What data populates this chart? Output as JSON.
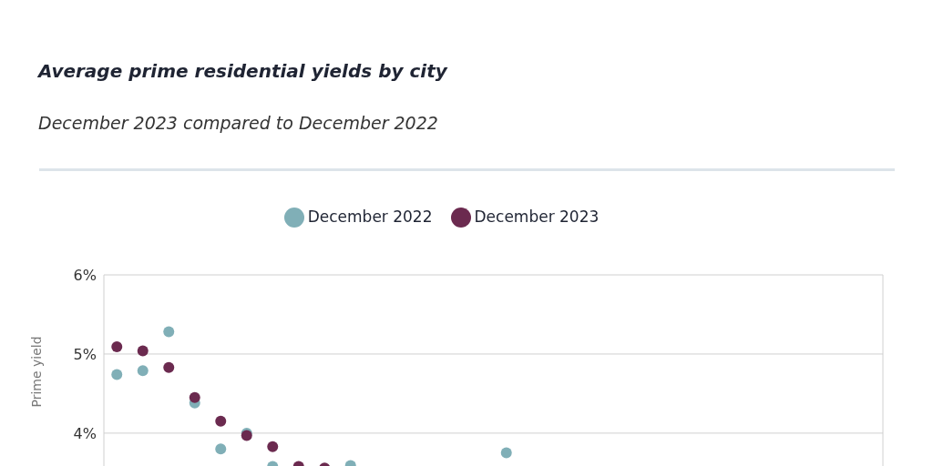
{
  "chart_data": {
    "type": "scatter",
    "title": "Average prime residential yields by city",
    "subtitle": "December 2023 compared to December 2022",
    "ylabel": "Prime yield",
    "categories": [
      null,
      null,
      null,
      null,
      null,
      null,
      null,
      null,
      null,
      null,
      null,
      null,
      null,
      null,
      null,
      null,
      null,
      null,
      null,
      null,
      null,
      null,
      null,
      null,
      null,
      null,
      null,
      null,
      null,
      null
    ],
    "series": [
      {
        "name": "December 2022",
        "color": "#80afb7",
        "values": [
          4.74,
          4.79,
          5.28,
          4.38,
          3.8,
          4.0,
          3.58,
          null,
          null,
          3.59,
          null,
          null,
          null,
          null,
          null,
          3.75,
          null,
          null,
          null,
          null,
          null,
          null,
          null,
          null,
          null,
          null,
          null,
          null,
          null,
          null
        ]
      },
      {
        "name": "December 2023",
        "color": "#6b2a4f",
        "values": [
          5.09,
          5.04,
          4.83,
          4.45,
          4.15,
          3.97,
          3.83,
          3.58,
          3.56,
          null,
          null,
          null,
          null,
          null,
          null,
          null,
          null,
          null,
          null,
          null,
          null,
          null,
          null,
          null,
          null,
          null,
          null,
          null,
          null,
          null
        ]
      }
    ],
    "ylim": [
      3.55,
      6
    ],
    "yticks": [
      {
        "value": 4,
        "label": "4%"
      },
      {
        "value": 5,
        "label": "5%"
      },
      {
        "value": 6,
        "label": "6%"
      }
    ],
    "grid": true,
    "legend": "top",
    "marker": "circle",
    "tick_labels": "y"
  }
}
